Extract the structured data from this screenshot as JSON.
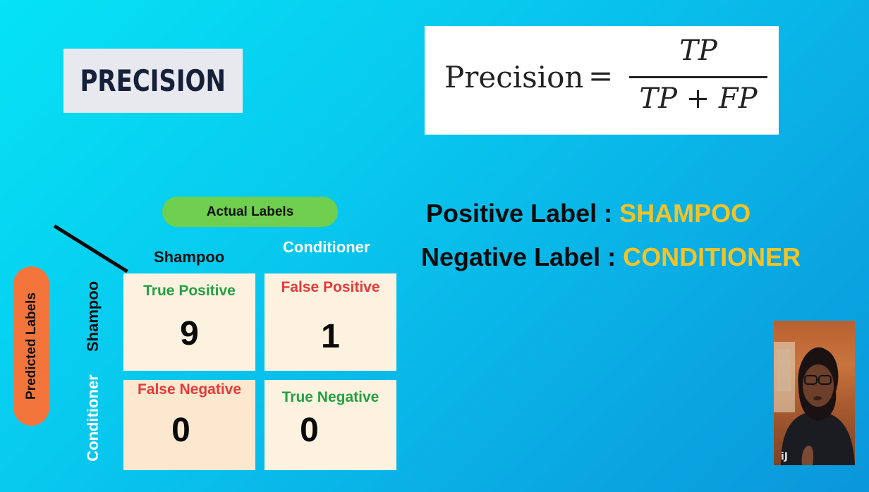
{
  "slide": {
    "title": "PRECISION",
    "formula": {
      "lhs": "Precision",
      "equals": "=",
      "numerator": "TP",
      "denominator": "TP + FP"
    },
    "positive_label": {
      "prefix": "Positive Label :",
      "value": "SHAMPOO"
    },
    "negative_label": {
      "prefix": "Negative Label :",
      "value": "CONDITIONER"
    },
    "colors": {
      "label_value": "#f6c324",
      "accent_green": "#23a043",
      "accent_red": "#e53a3a"
    }
  },
  "matrix": {
    "actual_axis": "Actual Labels",
    "predicted_axis": "Predicted Labels",
    "columns": [
      "Shampoo",
      "Conditioner"
    ],
    "rows": [
      "Shampoo",
      "Conditioner"
    ],
    "cells": [
      {
        "name": "True Positive",
        "value": "9"
      },
      {
        "name": "False Positive",
        "value": "1"
      },
      {
        "name": "False Negative",
        "value": "0"
      },
      {
        "name": "True Negative",
        "value": "0"
      }
    ]
  },
  "presenter": {
    "icon": "presenter-video"
  }
}
